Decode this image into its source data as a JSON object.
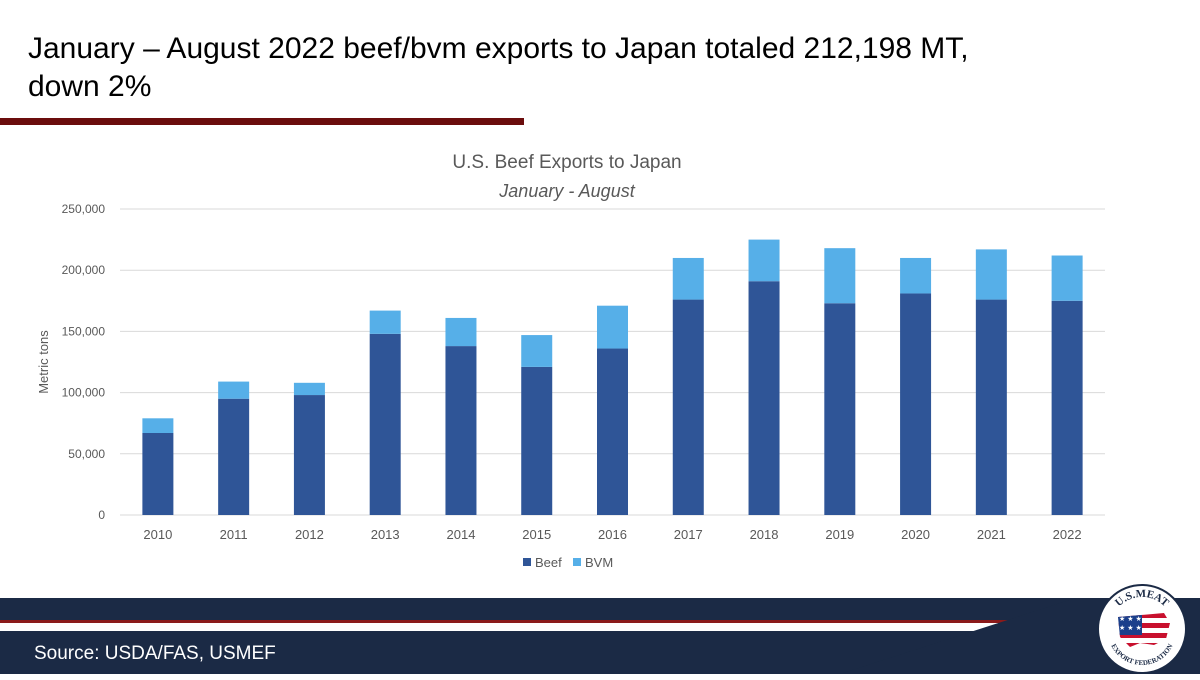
{
  "slide": {
    "title": "January – August 2022 beef/bvm exports to Japan totaled 212,198 MT, down 2%",
    "source": "Source: USDA/FAS, USMEF",
    "logo_text_top": "U.S.MEAT",
    "logo_text_bottom": "EXPORT FEDERATION"
  },
  "colors": {
    "title_rule": "#6b0d0d",
    "footer_navy": "#1b2a45",
    "footer_red": "#8b1a1a",
    "beef": "#2f5597",
    "bvm": "#56afe8",
    "grid": "#d9d9d9",
    "axis_text": "#595959"
  },
  "chart_data": {
    "type": "bar",
    "stacked": true,
    "title": "U.S. Beef Exports to Japan",
    "subtitle": "January - August",
    "xlabel": "",
    "ylabel": "Metric tons",
    "ylim": [
      0,
      250000
    ],
    "yticks": [
      "0",
      "50,000",
      "100,000",
      "150,000",
      "200,000",
      "250,000"
    ],
    "ytick_values": [
      0,
      50000,
      100000,
      150000,
      200000,
      250000
    ],
    "grid": true,
    "legend_position": "bottom",
    "categories": [
      "2010",
      "2011",
      "2012",
      "2013",
      "2014",
      "2015",
      "2016",
      "2017",
      "2018",
      "2019",
      "2020",
      "2021",
      "2022"
    ],
    "series": [
      {
        "name": "Beef",
        "values": [
          67000,
          95000,
          98000,
          148000,
          138000,
          121000,
          136000,
          176000,
          191000,
          173000,
          181000,
          176000,
          175000
        ]
      },
      {
        "name": "BVM",
        "values": [
          12000,
          14000,
          10000,
          19000,
          23000,
          26000,
          35000,
          34000,
          34000,
          45000,
          29000,
          41000,
          37000
        ]
      }
    ]
  }
}
